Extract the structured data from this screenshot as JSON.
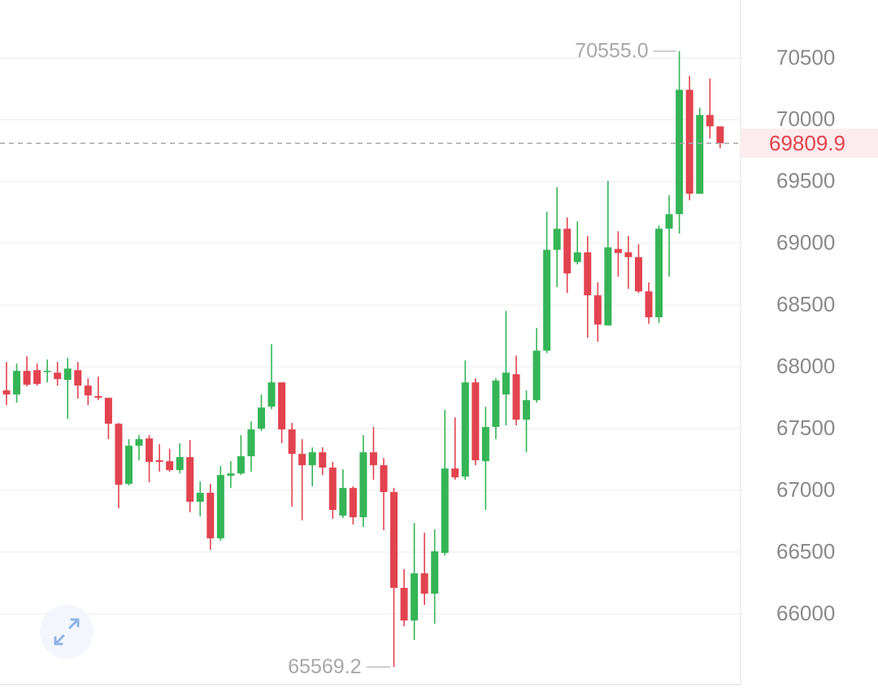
{
  "chart_data": {
    "type": "candlestick",
    "up_color": "#35b556",
    "down_color": "#e2434f",
    "grid": true,
    "ylim": [
      65440,
      70970
    ],
    "yticks": [
      66000,
      66500,
      67000,
      67500,
      68000,
      68500,
      69000,
      69500,
      70000,
      70500
    ],
    "open": [
      67809,
      67776,
      67967,
      67973,
      67960,
      67953,
      67894,
      67973,
      67848,
      67763,
      67749,
      67539,
      67052,
      67361,
      67420,
      67243,
      67236,
      67164,
      67269,
      66907,
      66980,
      66611,
      67118,
      67137,
      67276,
      67499,
      67677,
      67874,
      67493,
      67295,
      67203,
      67308,
      67184,
      66795,
      67019,
      66782,
      67308,
      67203,
      66986,
      66210,
      65946,
      66328,
      66163,
      66493,
      67177,
      67111,
      67874,
      67236,
      67513,
      67776,
      67940,
      67572,
      67730,
      68131,
      68947,
      69118,
      68848,
      68927,
      68579,
      68335,
      68954,
      68927,
      68888,
      68611,
      68401,
      69118,
      69236,
      70243,
      69401,
      70039,
      69947
    ],
    "high": [
      68039,
      68026,
      68085,
      68026,
      68059,
      68039,
      68072,
      68039,
      67907,
      67920,
      67749,
      67545,
      67414,
      67447,
      67447,
      67374,
      67335,
      67381,
      67407,
      67072,
      67052,
      67197,
      67236,
      67447,
      67559,
      67776,
      68184,
      67874,
      67545,
      67414,
      67348,
      67348,
      67230,
      67170,
      67032,
      67447,
      67513,
      67262,
      67019,
      66361,
      66736,
      66657,
      66683,
      67651,
      67591,
      68052,
      67907,
      67677,
      67907,
      68453,
      68091,
      67809,
      68315,
      69256,
      69454,
      69210,
      69177,
      69059,
      68684,
      69506,
      69098,
      69059,
      68993,
      68684,
      69144,
      69388,
      70555.0,
      70355,
      70098,
      70335,
      69947
    ],
    "low": [
      67690,
      67710,
      67842,
      67848,
      67874,
      67848,
      67578,
      67743,
      67690,
      67730,
      67414,
      66855,
      67039,
      67243,
      67065,
      67151,
      67151,
      67137,
      66822,
      66789,
      66519,
      66591,
      67019,
      67124,
      67151,
      67480,
      67657,
      67381,
      66868,
      66756,
      67032,
      67124,
      66769,
      66776,
      66723,
      66703,
      67085,
      66677,
      65569.2,
      65900,
      65789,
      66071,
      65920,
      66473,
      67085,
      67085,
      67203,
      66841,
      67414,
      67526,
      67526,
      67308,
      67710,
      68111,
      68644,
      68598,
      68829,
      68236,
      68203,
      68335,
      68730,
      68631,
      68598,
      68348,
      68355,
      68730,
      69079,
      69348,
      69401,
      69848,
      69769
    ],
    "close": [
      67776,
      67967,
      67855,
      67861,
      67967,
      67901,
      67986,
      67848,
      67769,
      67749,
      67539,
      67045,
      67361,
      67414,
      67230,
      67230,
      67164,
      67269,
      66907,
      66980,
      66611,
      67124,
      67137,
      67276,
      67493,
      67670,
      67874,
      67493,
      67295,
      67203,
      67308,
      67184,
      66841,
      67019,
      66782,
      67308,
      67203,
      66986,
      66210,
      65946,
      66328,
      66163,
      66506,
      67177,
      67105,
      67874,
      67243,
      67513,
      67888,
      67953,
      67572,
      67730,
      68131,
      68947,
      69118,
      68756,
      68927,
      68579,
      68342,
      68967,
      68921,
      68888,
      68611,
      68401,
      69118,
      69236,
      70243,
      69401,
      70039,
      69947,
      69809.9
    ],
    "max_label": {
      "value": 70555.0,
      "label": "70555.0"
    },
    "min_label": {
      "value": 65569.2,
      "label": "65569.2"
    },
    "last_price": 69809.9
  }
}
